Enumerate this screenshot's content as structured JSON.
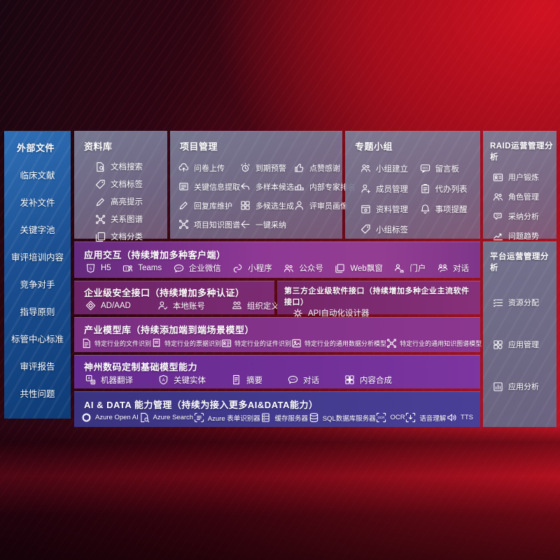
{
  "colors": {
    "bgRed": "#d01222",
    "sidebarTop": "#2f6fb6",
    "sidebarBottom": "#0e3c77",
    "purpleRow": "#8d3894",
    "violetRow": "#713098",
    "indigoRow": "#433b8e"
  },
  "sidebar": {
    "title": "外部文件",
    "items": [
      "临床文献",
      "发补文件",
      "关键字池",
      "审评培训内容",
      "竞争对手",
      "指导原则",
      "标管中心标准",
      "审评报告",
      "共性问题"
    ]
  },
  "panels": {
    "ziliao": {
      "title": "资料库",
      "items": [
        {
          "label": "文档搜索",
          "icon": "doc-search"
        },
        {
          "label": "文档标签",
          "icon": "tag"
        },
        {
          "label": "高亮提示",
          "icon": "highlight-pen"
        },
        {
          "label": "关系图谱",
          "icon": "graph"
        },
        {
          "label": "文档分类",
          "icon": "doc-copy"
        }
      ]
    },
    "xiangmu": {
      "title": "项目管理",
      "items": [
        {
          "label": "问卷上传",
          "icon": "cloud-upload"
        },
        {
          "label": "到期预警",
          "icon": "alarm"
        },
        {
          "label": "点赞感谢",
          "icon": "thumbs-up"
        },
        {
          "label": "关键信息提取",
          "icon": "info-extract"
        },
        {
          "label": "多样本候选",
          "icon": "reply-arrow"
        },
        {
          "label": "内部专家排名",
          "icon": "podium"
        },
        {
          "label": "回复库维护",
          "icon": "pen-edit"
        },
        {
          "label": "多候选生成",
          "icon": "grid-gen"
        },
        {
          "label": "评审员画像",
          "icon": "person"
        },
        {
          "label": "项目知识图谱",
          "icon": "knowledge-graph"
        },
        {
          "label": "一键采纳",
          "icon": "adopt-arrow"
        }
      ]
    },
    "zhuanti": {
      "title": "专题小组",
      "items": [
        {
          "label": "小组建立",
          "icon": "group-users"
        },
        {
          "label": "留言板",
          "icon": "bbs-board"
        },
        {
          "label": "成员管理",
          "icon": "member-add"
        },
        {
          "label": "代办列表",
          "icon": "todo-list"
        },
        {
          "label": "资料管理",
          "icon": "folder-box"
        },
        {
          "label": "事项提醒",
          "icon": "bell"
        },
        {
          "label": "小组标签",
          "icon": "tag"
        }
      ]
    },
    "raid": {
      "title": "RAID运营管理分析",
      "items": [
        {
          "label": "用户锻炼",
          "icon": "user-card"
        },
        {
          "label": "角色管理",
          "icon": "role-users"
        },
        {
          "label": "采纳分析",
          "icon": "qa-chat"
        },
        {
          "label": "问题趋势",
          "icon": "trend-chart"
        }
      ]
    },
    "pingtai": {
      "title": "平台运营管理分析",
      "items": [
        {
          "label": "资源分配",
          "icon": "resource-list"
        },
        {
          "label": "应用管理",
          "icon": "app-grid"
        },
        {
          "label": "应用分析",
          "icon": "app-chart"
        }
      ]
    },
    "yingyong": {
      "title": "应用交互（持续增加多种客户端）",
      "items": [
        {
          "label": "H5",
          "icon": "h5"
        },
        {
          "label": "Teams",
          "icon": "teams"
        },
        {
          "label": "企业微信",
          "icon": "wecom-chat"
        },
        {
          "label": "小程序",
          "icon": "miniprogram"
        },
        {
          "label": "公众号",
          "icon": "account-users"
        },
        {
          "label": "Web飘窗",
          "icon": "web-window"
        },
        {
          "label": "门户",
          "icon": "portal-person"
        },
        {
          "label": "对话",
          "icon": "dialog-users"
        }
      ]
    },
    "anquan": {
      "title": "企业级安全接口（持续增加多种认证）",
      "items": [
        {
          "label": "AD/AAD",
          "icon": "ad-diamond"
        },
        {
          "label": "本地账号",
          "icon": "local-account"
        },
        {
          "label": "组织定义",
          "icon": "org-users"
        }
      ]
    },
    "disanfang": {
      "title": "第三方企业级软件接口（持续增加多种企业主流软件接口）",
      "items": [
        {
          "label": "API自动化设计器",
          "icon": "api-gear"
        }
      ]
    },
    "chanye": {
      "title": "产业模型库（持续添加端到端场景模型）",
      "items": [
        {
          "label": "特定行业的文件识别",
          "icon": "file-doc"
        },
        {
          "label": "特定行业的票据识别",
          "icon": "receipt"
        },
        {
          "label": "特定行业的证件识别",
          "icon": "id-card"
        },
        {
          "label": "特定行业的通用数据分析模型",
          "icon": "data-image"
        },
        {
          "label": "特定行业的通用知识图谱模型",
          "icon": "knowledge-graph"
        }
      ]
    },
    "shenzhou": {
      "title": "神州数码定制基础模型能力",
      "items": [
        {
          "label": "机器翻译",
          "icon": "translate"
        },
        {
          "label": "关键实体",
          "icon": "entity-shield"
        },
        {
          "label": "摘要",
          "icon": "summary-doc"
        },
        {
          "label": "对话",
          "icon": "chat-bubble"
        },
        {
          "label": "内容合成",
          "icon": "compose-grid"
        }
      ]
    },
    "aidata": {
      "title": "AI & DATA 能力管理（持续为接入更多AI&DATA能力）",
      "items": [
        {
          "label": "Azure Open AI",
          "icon": "openai"
        },
        {
          "label": "Azure Search",
          "icon": "azure-search"
        },
        {
          "label": "Azure 表单识别器",
          "icon": "form-recognizer"
        },
        {
          "label": "缓存服务器",
          "icon": "cache-server"
        },
        {
          "label": "SQL数据库服务器",
          "icon": "sql-db"
        },
        {
          "label": "OCR",
          "icon": "ocr"
        },
        {
          "label": "语音理解",
          "icon": "speech"
        },
        {
          "label": "TTS",
          "icon": "tts"
        }
      ]
    }
  }
}
